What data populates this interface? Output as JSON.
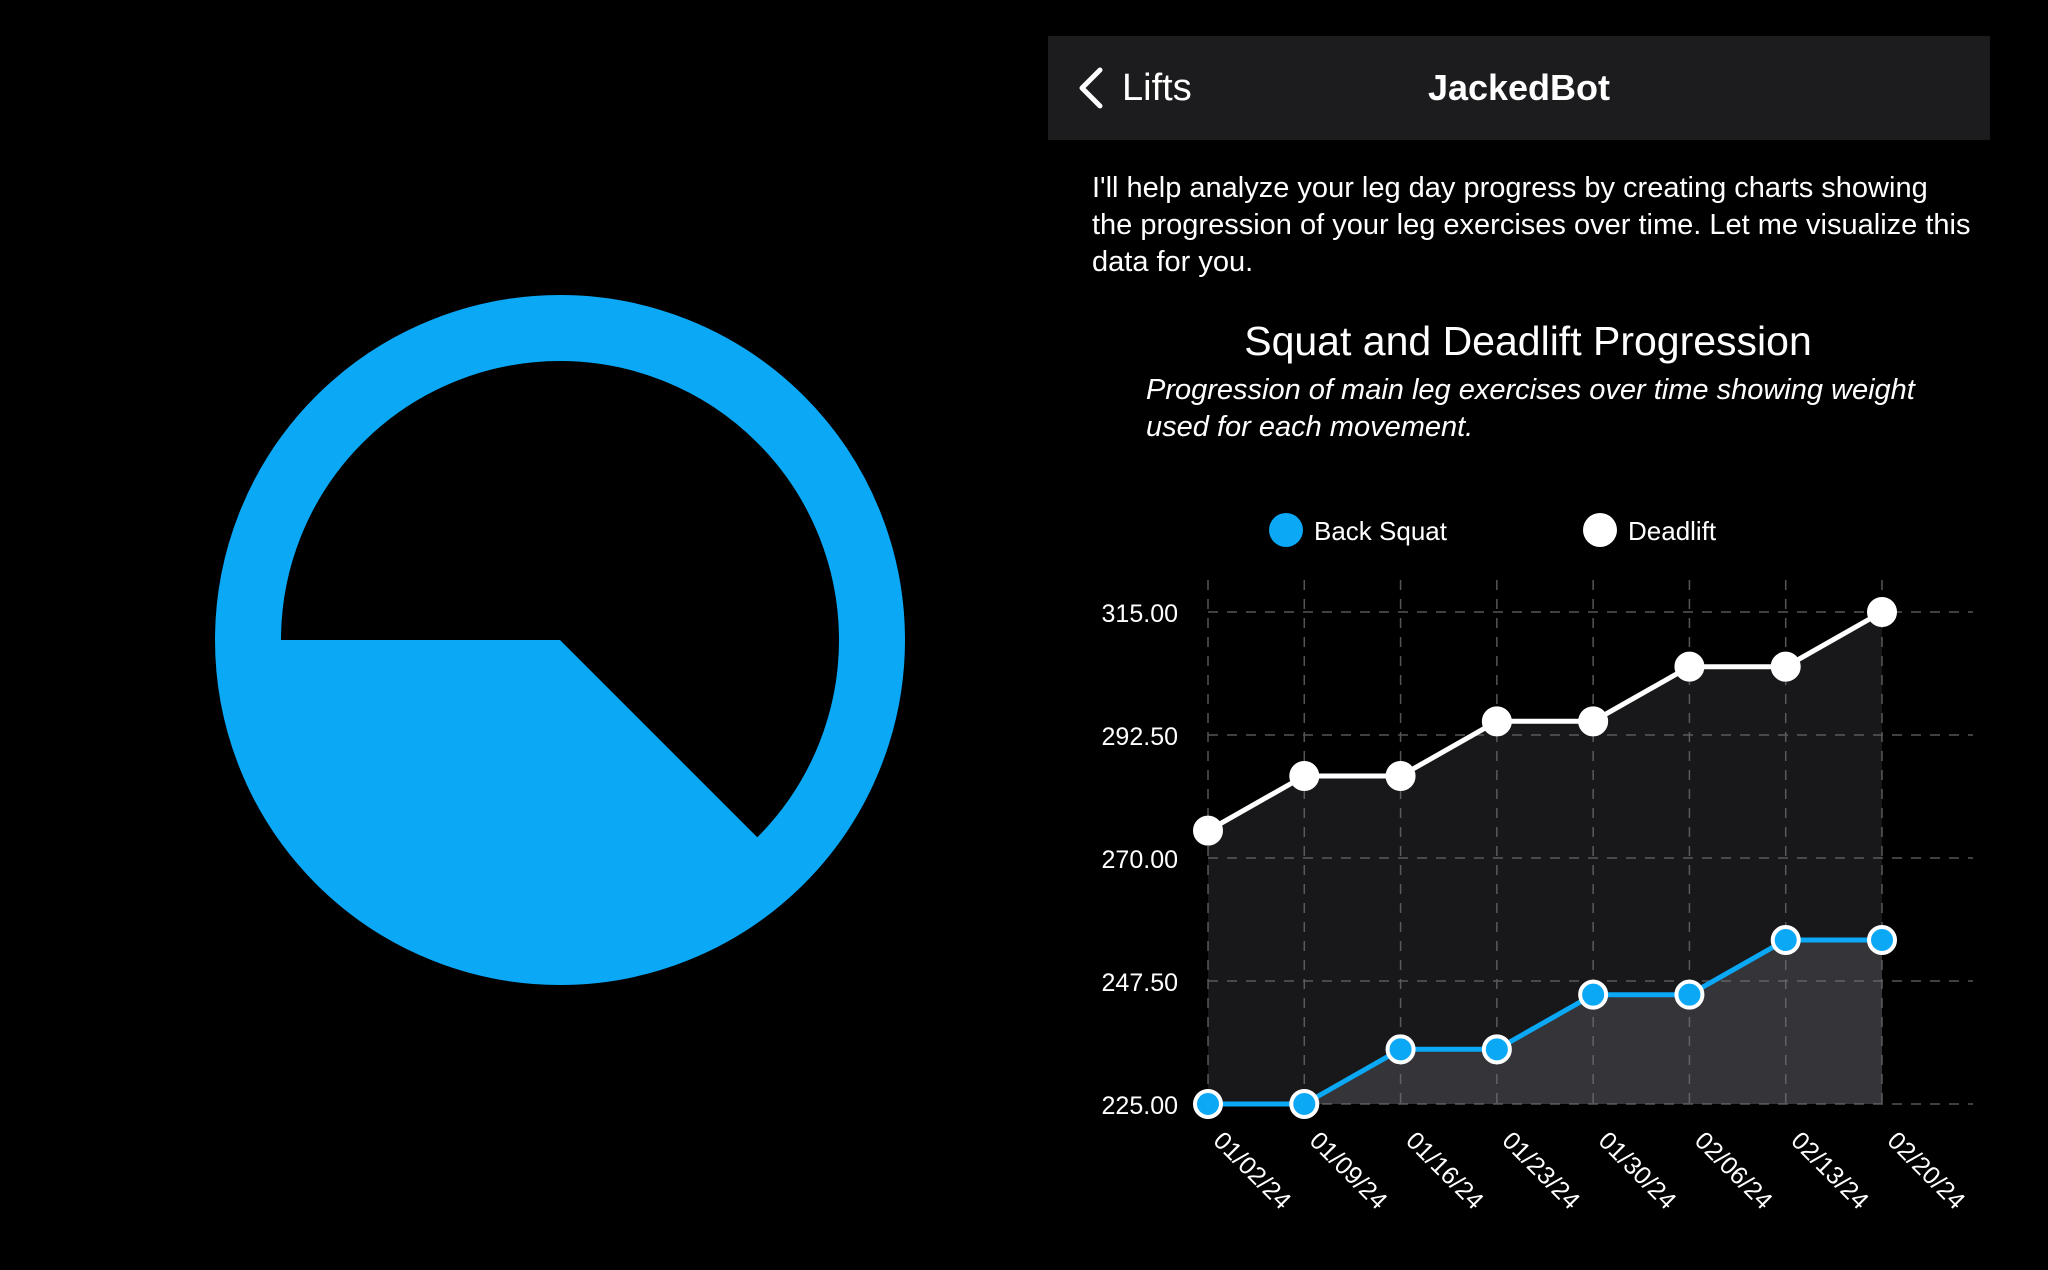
{
  "colors": {
    "background": "#000000",
    "navbar": "#1c1c1e",
    "accent": "#0aa8f5",
    "text": "#ffffff",
    "grid": "#555555"
  },
  "logo": {
    "icon": "gauge-icon",
    "fill_fraction": 0.375
  },
  "navbar": {
    "back_icon": "chevron-left-icon",
    "back_label": "Lifts",
    "title": "JackedBot"
  },
  "message": {
    "text": "I'll help analyze your leg day progress by creating charts showing the progression of your leg exercises over time. Let me visualize this data for you."
  },
  "chart": {
    "title": "Squat and Deadlift Progression",
    "subtitle": "Progression of main leg exercises over time showing weight used for each movement."
  },
  "chart_data": {
    "type": "line",
    "title": "Squat and Deadlift Progression",
    "subtitle": "Progression of main leg exercises over time showing weight used for each movement.",
    "xlabel": "",
    "ylabel": "",
    "x": [
      "01/02/24",
      "01/09/24",
      "01/16/24",
      "01/23/24",
      "01/30/24",
      "02/06/24",
      "02/13/24",
      "02/20/24"
    ],
    "ylim": [
      225,
      315
    ],
    "yticks": [
      "225.00",
      "247.50",
      "270.00",
      "292.50",
      "315.00"
    ],
    "grid": true,
    "legend_position": "top",
    "series": [
      {
        "name": "Back Squat",
        "color": "#0aa8f5",
        "values": [
          225,
          225,
          235,
          235,
          245,
          245,
          255,
          255
        ]
      },
      {
        "name": "Deadlift",
        "color": "#ffffff",
        "values": [
          275,
          285,
          285,
          295,
          295,
          305,
          305,
          315
        ]
      }
    ]
  }
}
